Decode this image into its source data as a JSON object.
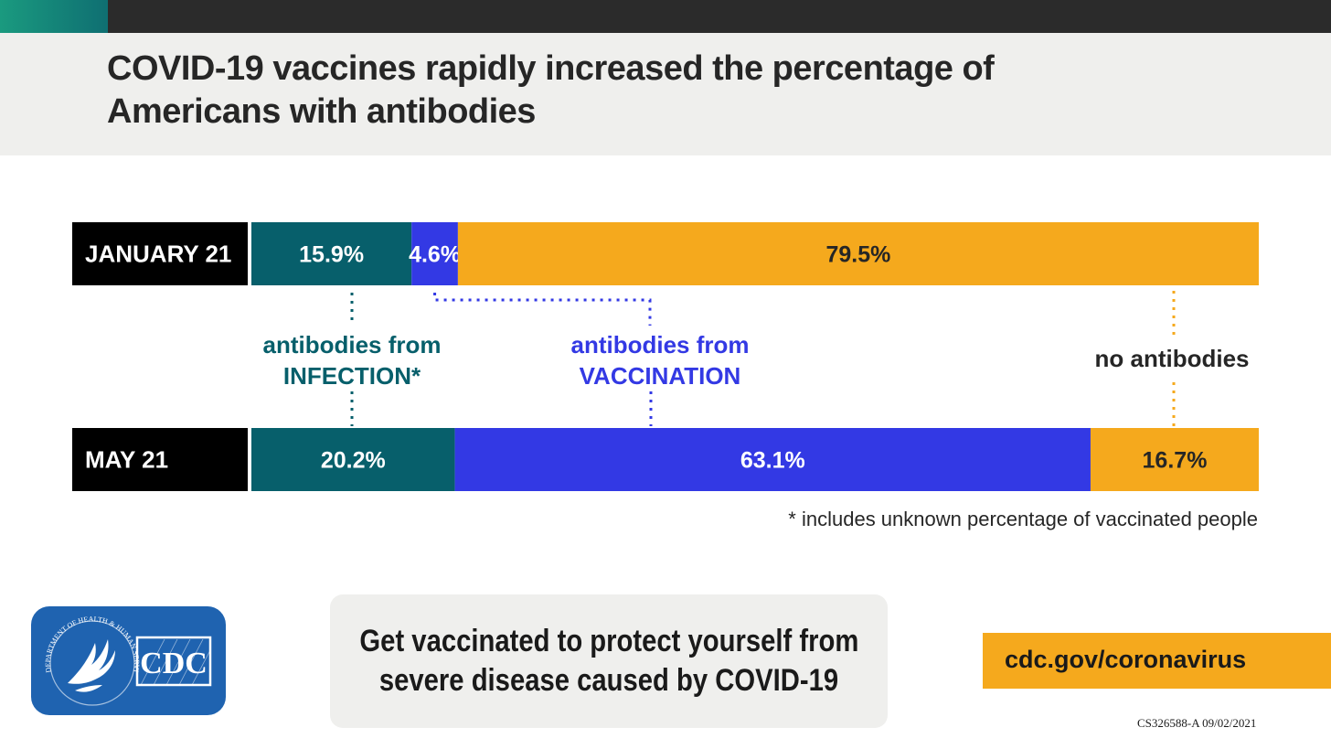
{
  "header": {
    "title_lines": [
      "COVID-19 vaccines rapidly increased the percentage of",
      "Americans with antibodies"
    ]
  },
  "chart_data": {
    "type": "bar",
    "orientation": "horizontal",
    "stacked": true,
    "categories": [
      "JANUARY 21",
      "MAY 21"
    ],
    "series": [
      {
        "name": "antibodies from INFECTION*",
        "values": [
          15.9,
          20.2
        ],
        "labels": [
          "15.9%",
          "20.2%"
        ]
      },
      {
        "name": "antibodies from VACCINATION",
        "values": [
          4.6,
          63.1
        ],
        "labels": [
          "4.6%",
          "63.1%"
        ]
      },
      {
        "name": "no antibodies",
        "values": [
          79.5,
          16.7
        ],
        "labels": [
          "79.5%",
          "16.7%"
        ]
      }
    ],
    "legend": [
      {
        "lines": [
          "antibodies from",
          "INFECTION*"
        ]
      },
      {
        "lines": [
          "antibodies from",
          "VACCINATION"
        ]
      },
      {
        "lines": [
          "no antibodies"
        ]
      }
    ],
    "colors": {
      "infection": "#075f6b",
      "vaccination": "#3339e4",
      "none": "#f5a91d",
      "category_bg": "#000000"
    },
    "xlim": [
      0,
      100
    ],
    "grid": false
  },
  "footnote": "* includes unknown percentage of vaccinated people",
  "logo": {
    "seal_text": "DEPARTMENT OF HEALTH & HUMAN SERVICES · USA",
    "brand": "CDC",
    "icon": "hhs-eagle-icon"
  },
  "cta": {
    "lines": [
      "Get vaccinated to protect yourself from",
      "severe disease caused by COVID-19"
    ]
  },
  "url": "cdc.gov/coronavirus",
  "code": "CS326588-A 09/02/2021"
}
